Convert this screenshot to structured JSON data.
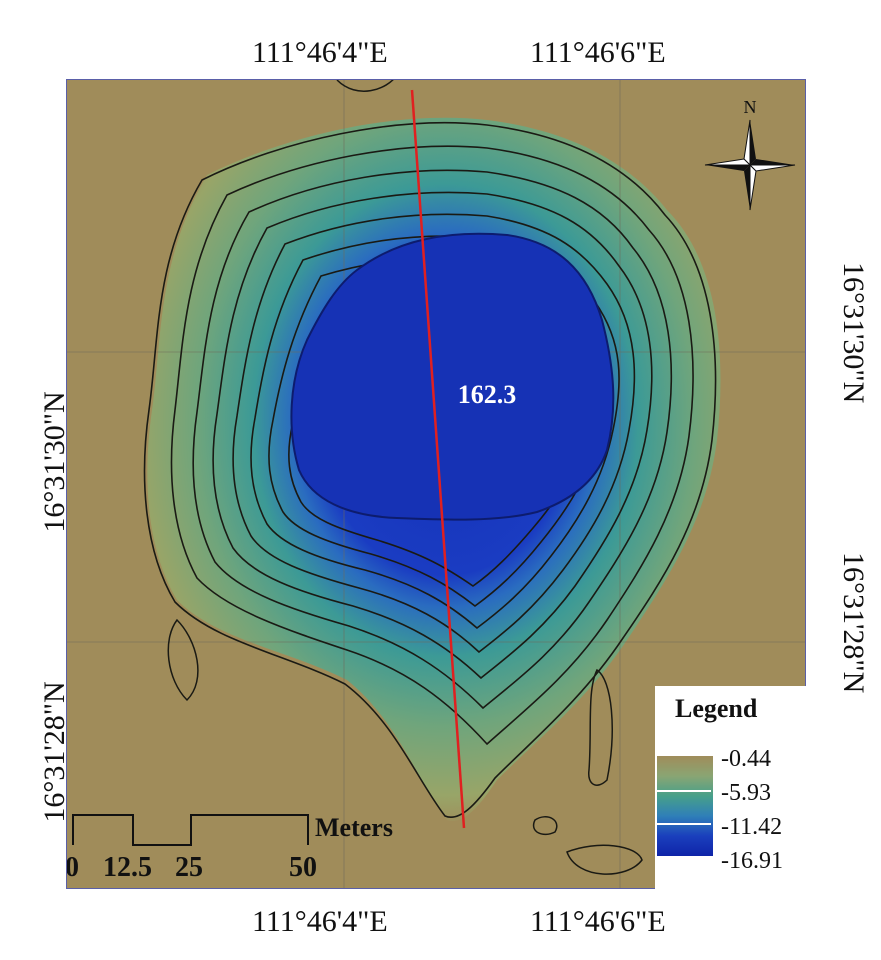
{
  "map": {
    "coords_top": [
      "111°46'4\"E",
      "111°46'6\"E"
    ],
    "coords_bottom": [
      "111°46'4\"E",
      "111°46'6\"E"
    ],
    "coords_left": [
      "16°31'30\"N",
      "16°31'28\"N"
    ],
    "coords_right": [
      "16°31'30\"N",
      "16°31'28\"N"
    ],
    "depth_label": "162.3",
    "north_label": "N",
    "colors": {
      "land": "#a08c5a",
      "shallow": "#7aa574",
      "mid": "#3c9a96",
      "deep": "#1a39c0",
      "profile_line": "#e02020"
    }
  },
  "legend": {
    "title": "Legend",
    "values": [
      "-0.44",
      "-5.93",
      "-11.42",
      "-16.91"
    ]
  },
  "scale_bar": {
    "unit": "Meters",
    "ticks": [
      "0",
      "12.5",
      "25",
      "50"
    ]
  }
}
